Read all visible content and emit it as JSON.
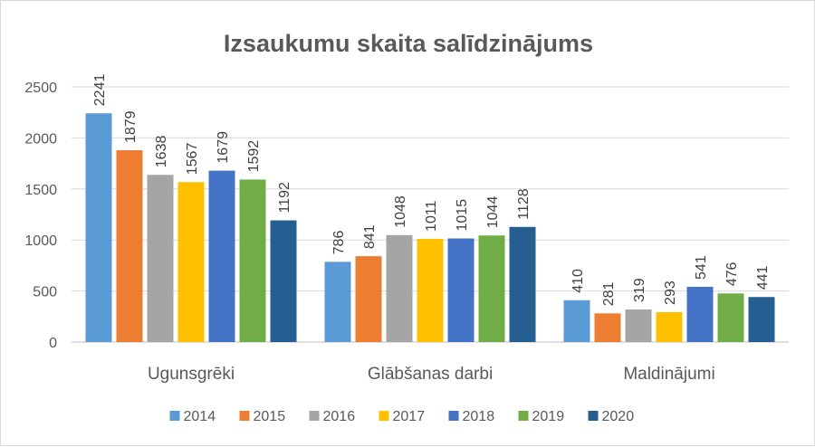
{
  "chart_data": {
    "type": "bar",
    "title": "Izsaukumu skaita salīdzinājums",
    "categories": [
      "Ugunsgrēki",
      "Glābšanas darbi",
      "Maldinājumi"
    ],
    "series": [
      {
        "name": "2014",
        "color": "#5B9BD5",
        "values": [
          2241,
          786,
          410
        ]
      },
      {
        "name": "2015",
        "color": "#ED7D31",
        "values": [
          1879,
          841,
          281
        ]
      },
      {
        "name": "2016",
        "color": "#A5A5A5",
        "values": [
          1638,
          1048,
          319
        ]
      },
      {
        "name": "2017",
        "color": "#FFC000",
        "values": [
          1567,
          1011,
          293
        ]
      },
      {
        "name": "2018",
        "color": "#4472C4",
        "values": [
          1679,
          1015,
          541
        ]
      },
      {
        "name": "2019",
        "color": "#70AD47",
        "values": [
          1592,
          1044,
          476
        ]
      },
      {
        "name": "2020",
        "color": "#255E91",
        "values": [
          1192,
          1128,
          441
        ]
      }
    ],
    "yticks": [
      0,
      500,
      1000,
      1500,
      2000,
      2500
    ],
    "ylim": [
      0,
      2500
    ],
    "grid": true,
    "legend": "bottom",
    "data_labels": true
  }
}
